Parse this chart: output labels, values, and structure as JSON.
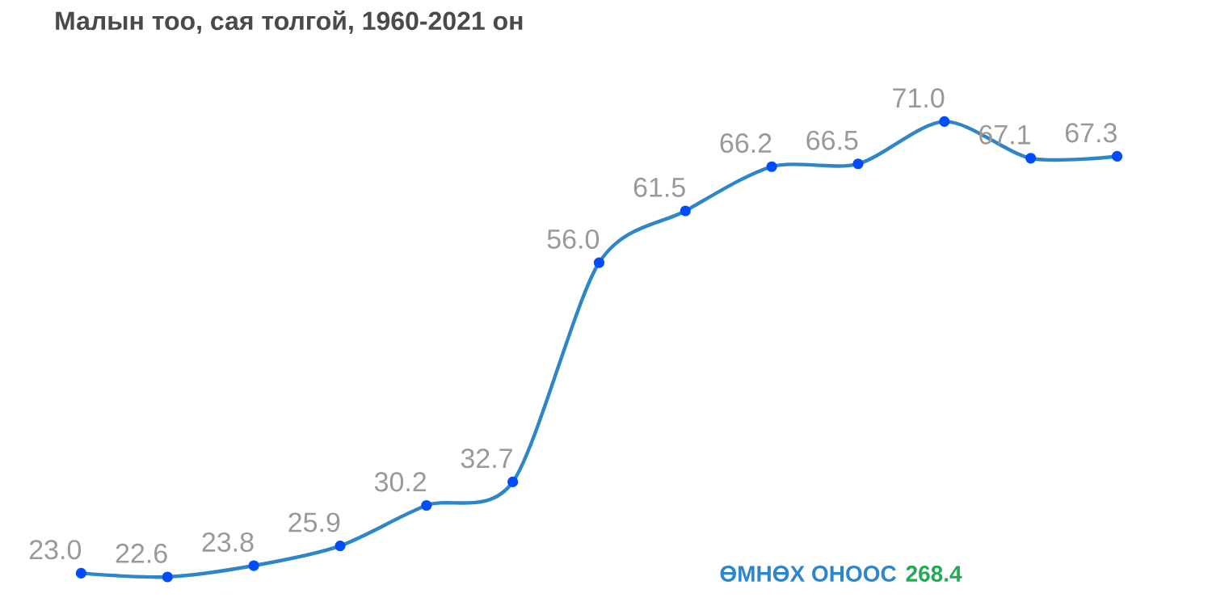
{
  "chart_data": {
    "type": "line",
    "title": "Малын тоо, сая толгой, 1960-2021 он",
    "categories": [
      null,
      null,
      null,
      null,
      null,
      null,
      null,
      null,
      null,
      null,
      null,
      null,
      null
    ],
    "values": [
      23.0,
      22.6,
      23.8,
      25.9,
      30.2,
      32.7,
      56.0,
      61.5,
      66.2,
      66.5,
      71.0,
      67.1,
      67.3
    ],
    "color": "#2e86c8",
    "marker": "circle",
    "value_labels": [
      "23.0",
      "22.6",
      "23.8",
      "25.9",
      "30.2",
      "32.7",
      "56.0",
      "61.5",
      "66.2",
      "66.5",
      "71.0",
      "67.1",
      "67.3"
    ],
    "annotations": [
      "ӨМНӨХ ОНООС",
      "268.4"
    ]
  }
}
